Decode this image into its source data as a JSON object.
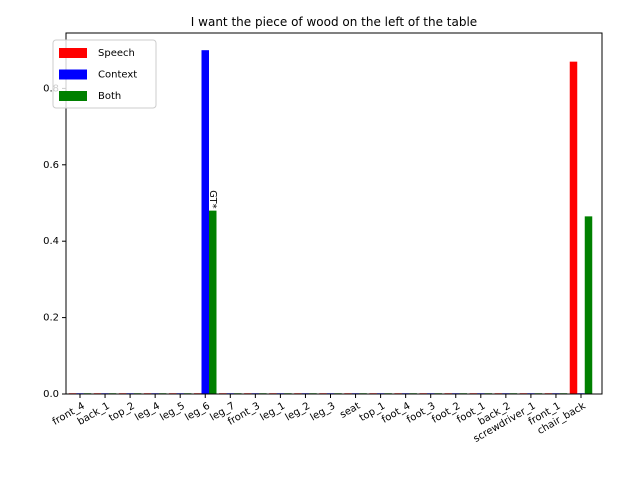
{
  "chart_data": {
    "type": "bar",
    "title": "I want the piece of wood on the left of the table",
    "xlabel": "",
    "ylabel": "",
    "ylim": [
      0,
      0.945
    ],
    "yticks": [
      "0.0",
      "0.2",
      "0.4",
      "0.6",
      "0.8"
    ],
    "ytick_values": [
      0.0,
      0.2,
      0.4,
      0.6,
      0.8
    ],
    "categories": [
      "front_4",
      "back_1",
      "top_2",
      "leg_4",
      "leg_5",
      "leg_6",
      "leg_7",
      "front_3",
      "leg_1",
      "leg_2",
      "leg_3",
      "seat",
      "top_1",
      "foot_4",
      "foot_3",
      "foot_2",
      "foot_1",
      "back_2",
      "screwdriver_1",
      "front_1",
      "chair_back"
    ],
    "series": [
      {
        "name": "Speech",
        "color": "#ff0000",
        "values": [
          0.002,
          0.002,
          0.002,
          0.002,
          0.002,
          0.002,
          0.002,
          0.002,
          0.002,
          0.002,
          0.002,
          0.002,
          0.002,
          0.002,
          0.002,
          0.002,
          0.002,
          0.002,
          0.002,
          0.002,
          0.87
        ]
      },
      {
        "name": "Context",
        "color": "#0000ff",
        "values": [
          0.002,
          0.002,
          0.002,
          0.002,
          0.002,
          0.9,
          0.002,
          0.002,
          0.002,
          0.002,
          0.002,
          0.002,
          0.002,
          0.002,
          0.002,
          0.002,
          0.002,
          0.002,
          0.002,
          0.002,
          0.002
        ]
      },
      {
        "name": "Both",
        "color": "#008000",
        "values": [
          0.002,
          0.002,
          0.002,
          0.002,
          0.002,
          0.48,
          0.002,
          0.002,
          0.002,
          0.002,
          0.002,
          0.002,
          0.002,
          0.002,
          0.002,
          0.002,
          0.002,
          0.002,
          0.002,
          0.002,
          0.465
        ]
      }
    ],
    "annotations": [
      {
        "text": "GT*",
        "category_index": 5,
        "y": 0.48
      }
    ],
    "legend_position": "top-left",
    "grid": false
  }
}
